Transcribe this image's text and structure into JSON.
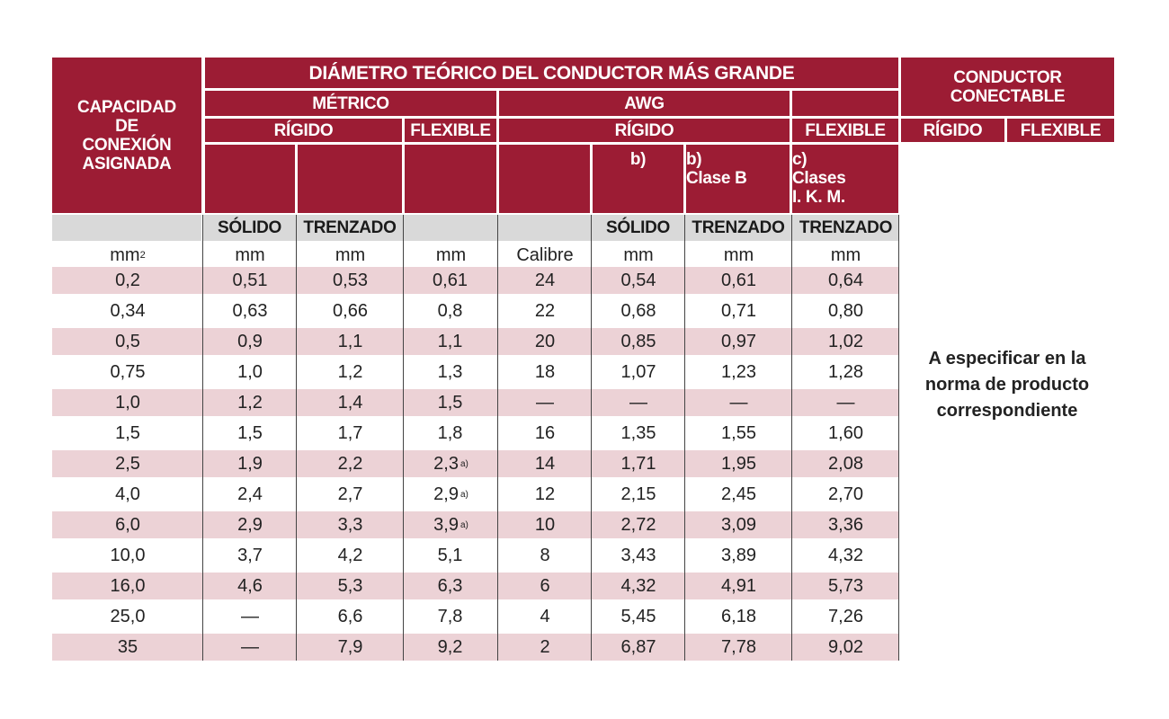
{
  "headers": {
    "capacidad": "CAPACIDAD DE CONEXIÓN ASIGNADA",
    "diametro": "DIÁMETRO TEÓRICO DEL CONDUCTOR MÁS GRANDE",
    "metrico": "MÉTRICO",
    "awg": "AWG",
    "conductor": "CONDUCTOR CONECTABLE",
    "rigido_metrico": "RÍGIDO",
    "flexible_metrico": "FLEXIBLE",
    "rigido_awg": "RÍGIDO",
    "flexible_awg": "FLEXIBLE",
    "rigido_conductor": "RÍGIDO",
    "flexible_conductor": "FLEXIBLE",
    "note_b1": "b)",
    "note_b2_line1": "b)",
    "note_b2_line2": "Clase B",
    "note_c_line1": "c)",
    "note_c_line2": "Clases",
    "note_c_line3": "I. K. M."
  },
  "subheaders": {
    "metric_solido": "SÓLIDO",
    "metric_trenzado": "TRENZADO",
    "awg_solido": "SÓLIDO",
    "awg_trenzado": "TRENZADO",
    "awg_flex_trenzado": "TRENZADO"
  },
  "units": {
    "capacidad": "mm",
    "capacidad_exp": "2",
    "met_solido": "mm",
    "met_trenzado": "mm",
    "met_flexible": "mm",
    "calibre": "Calibre",
    "awg_solido": "mm",
    "awg_trenzado": "mm",
    "awg_flexible": "mm"
  },
  "rows": [
    [
      "0,2",
      "0,51",
      "0,53",
      "0,61",
      "24",
      "0,54",
      "0,61",
      "0,64"
    ],
    [
      "0,34",
      "0,63",
      "0,66",
      "0,8",
      "22",
      "0,68",
      "0,71",
      "0,80"
    ],
    [
      "0,5",
      "0,9",
      "1,1",
      "1,1",
      "20",
      "0,85",
      "0,97",
      "1,02"
    ],
    [
      "0,75",
      "1,0",
      "1,2",
      "1,3",
      "18",
      "1,07",
      "1,23",
      "1,28"
    ],
    [
      "1,0",
      "1,2",
      "1,4",
      "1,5",
      "—",
      "—",
      "—",
      "—"
    ],
    [
      "1,5",
      "1,5",
      "1,7",
      "1,8",
      "16",
      "1,35",
      "1,55",
      "1,60"
    ],
    [
      "2,5",
      "1,9",
      "2,2",
      "2,3",
      "14",
      "1,71",
      "1,95",
      "2,08"
    ],
    [
      "4,0",
      "2,4",
      "2,7",
      "2,9",
      "12",
      "2,15",
      "2,45",
      "2,70"
    ],
    [
      "6,0",
      "2,9",
      "3,3",
      "3,9",
      "10",
      "2,72",
      "3,09",
      "3,36"
    ],
    [
      "10,0",
      "3,7",
      "4,2",
      "5,1",
      "8",
      "3,43",
      "3,89",
      "4,32"
    ],
    [
      "16,0",
      "4,6",
      "5,3",
      "6,3",
      "6",
      "4,32",
      "4,91",
      "5,73"
    ],
    [
      "25,0",
      "—",
      "6,6",
      "7,8",
      "4",
      "5,45",
      "6,18",
      "7,26"
    ],
    [
      "35",
      "—",
      "7,9",
      "9,2",
      "2",
      "6,87",
      "7,78",
      "9,02"
    ]
  ],
  "footnote_marks": [
    "",
    "",
    "",
    "",
    "",
    "",
    "a)",
    "a)",
    "a)",
    "",
    "",
    "",
    ""
  ],
  "side_note": {
    "line1": "A especificar en la",
    "line2": "norma de producto",
    "line3": "correspondiente"
  }
}
